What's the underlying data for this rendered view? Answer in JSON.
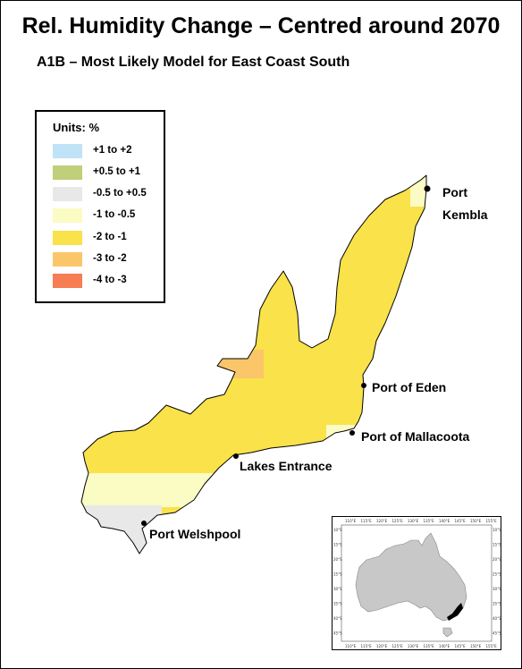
{
  "title": "Rel. Humidity Change – Centred around 2070",
  "subtitle": "A1B – Most Likely Model for East Coast South",
  "legend": {
    "title": "Units: %",
    "items": [
      {
        "label": "+1 to +2",
        "color": "#bfe3f7"
      },
      {
        "label": "+0.5 to +1",
        "color": "#bfcf7a"
      },
      {
        "label": "-0.5 to +0.5",
        "color": "#e8e8e8"
      },
      {
        "label": "-1 to -0.5",
        "color": "#fbfbc4"
      },
      {
        "label": "-2 to -1",
        "color": "#f9e24a"
      },
      {
        "label": "-3 to -2",
        "color": "#fbc66a"
      },
      {
        "label": "-4 to -3",
        "color": "#f77d52"
      }
    ]
  },
  "places": {
    "port_kembla_1": "Port",
    "port_kembla_2": "Kembla",
    "port_of_eden": "Port of Eden",
    "port_of_mallacoota": "Port of Mallacoota",
    "lakes_entrance": "Lakes Entrance",
    "port_welshpool": "Port Welshpool"
  },
  "inset": {
    "top_ticks": [
      "110°E",
      "115°E",
      "120°E",
      "125°E",
      "130°E",
      "135°E",
      "140°E",
      "145°E",
      "150°E",
      "155°E"
    ],
    "side_ticks": [
      "10°S",
      "15°S",
      "20°S",
      "25°S",
      "30°S",
      "35°S",
      "40°S",
      "45°S"
    ]
  }
}
